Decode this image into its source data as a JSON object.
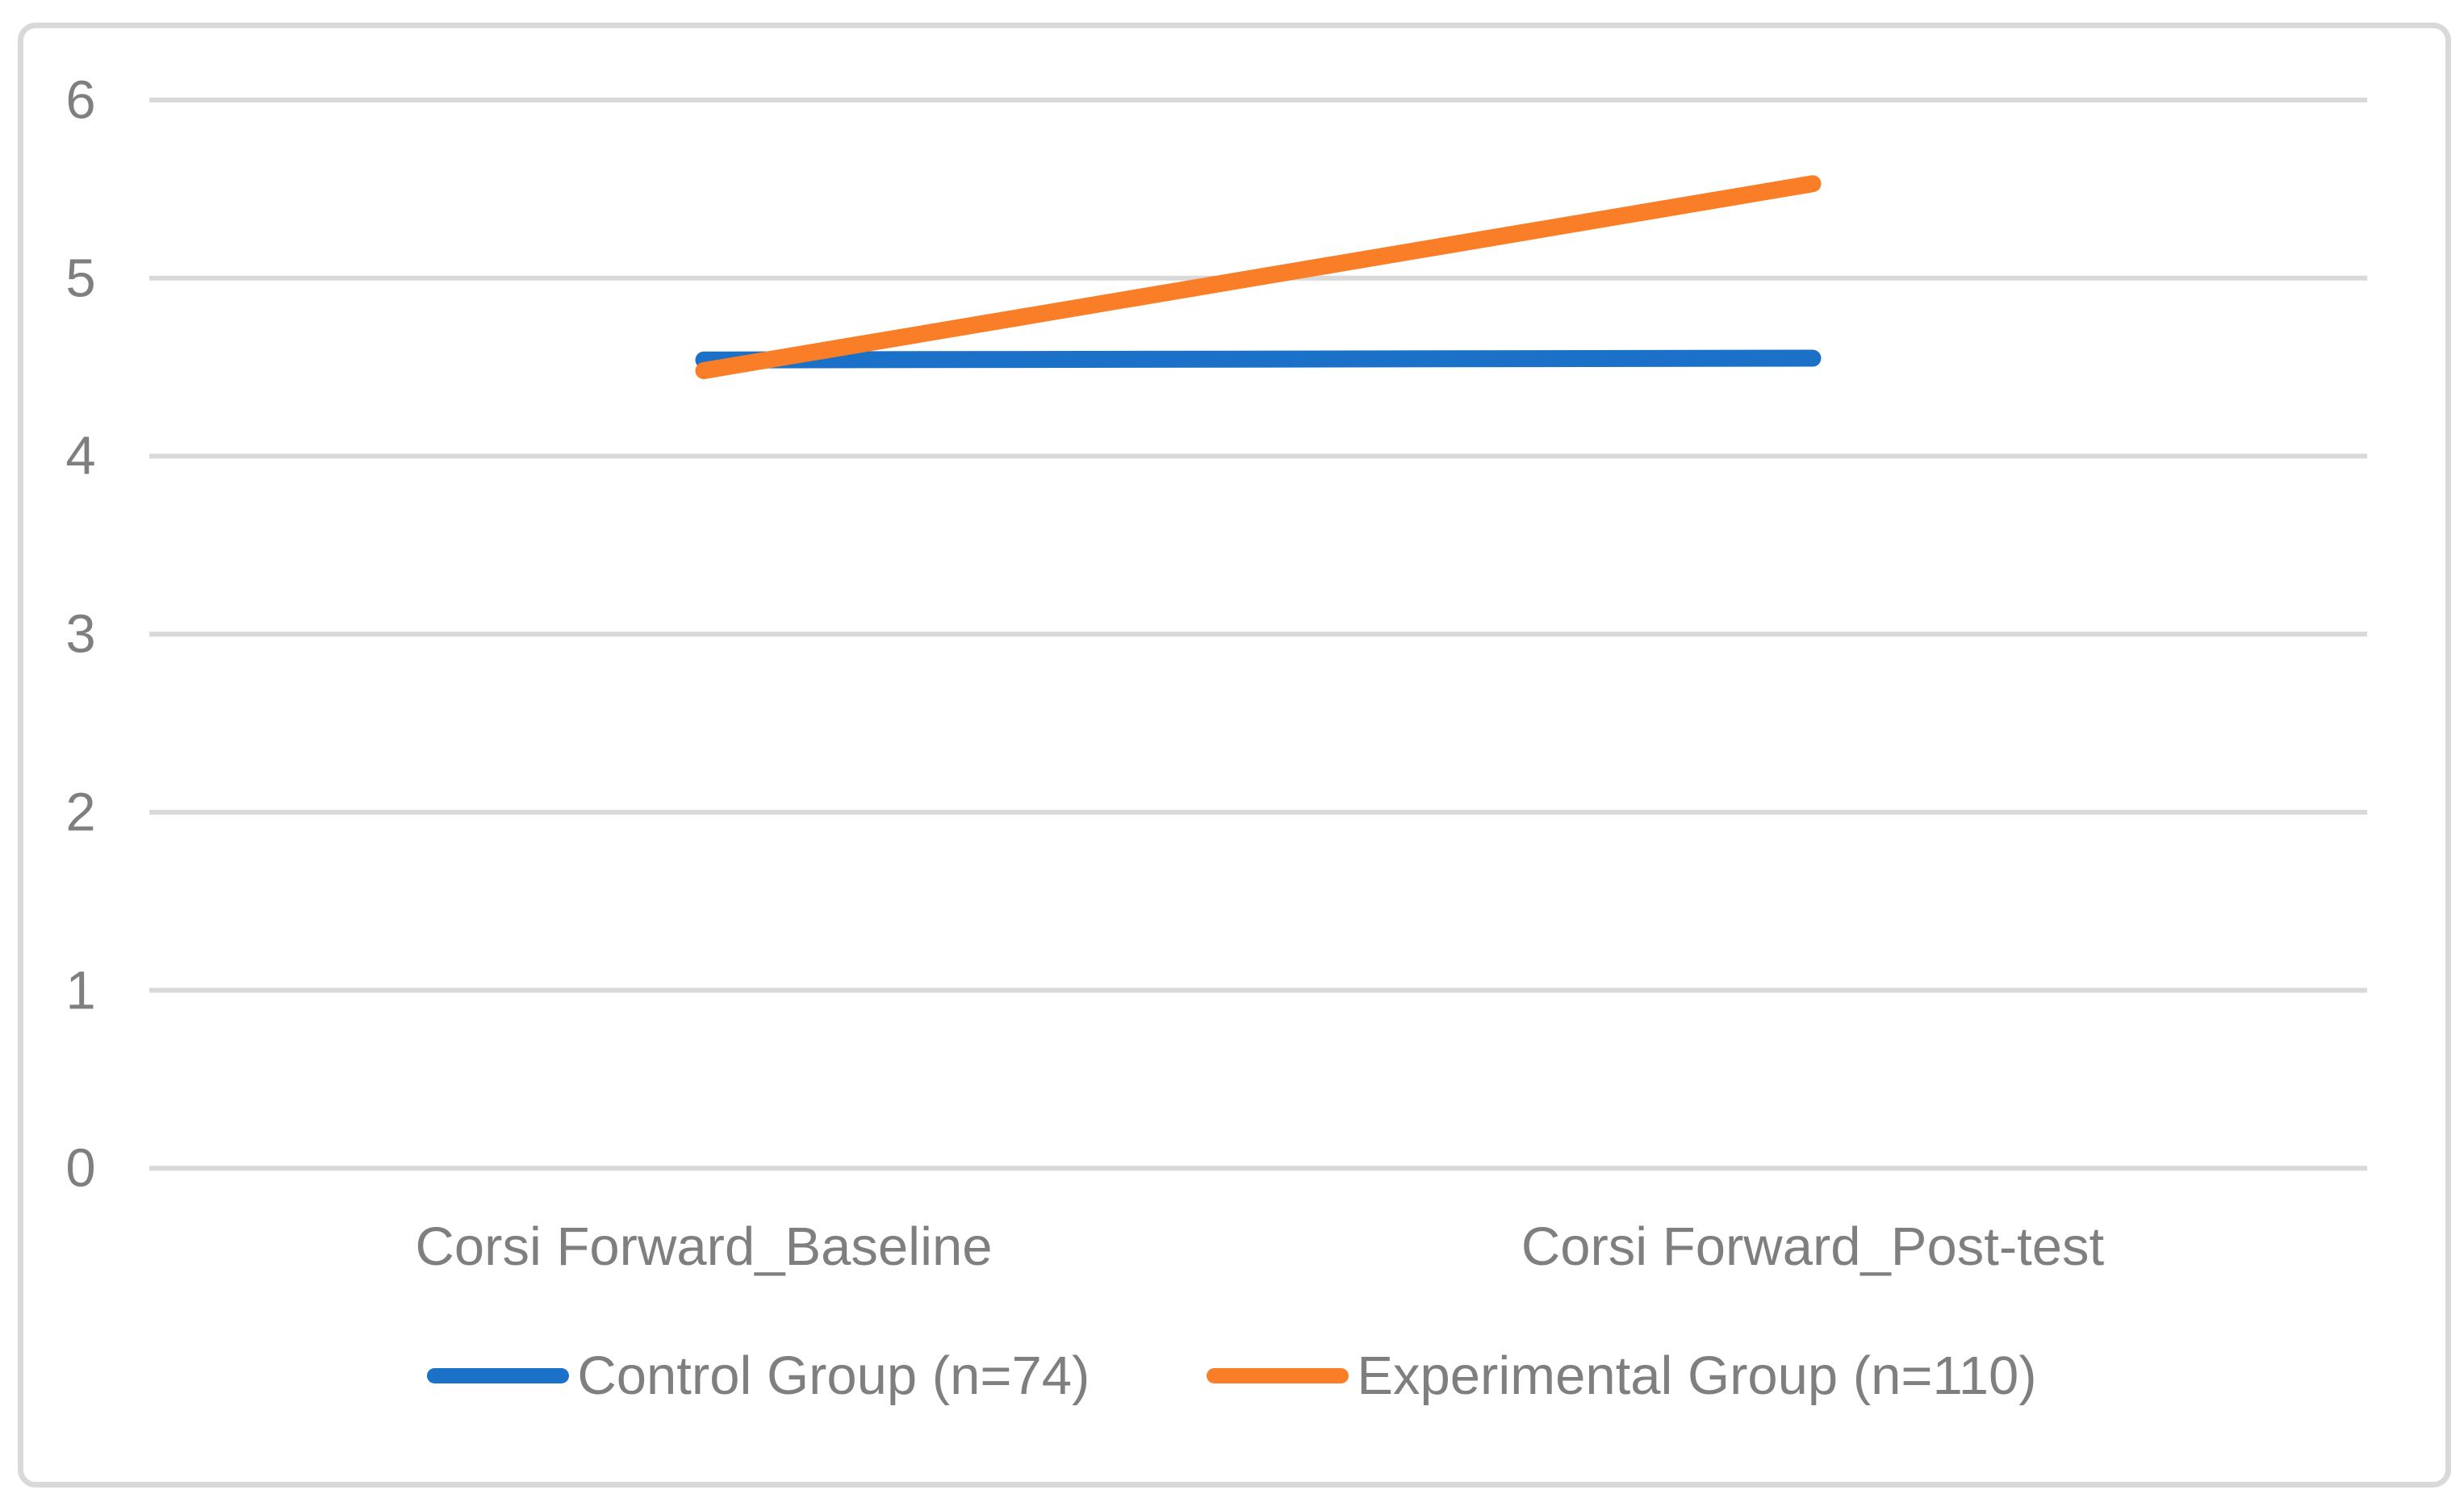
{
  "chart_data": {
    "type": "line",
    "categories": [
      "Corsi Forward_Baseline",
      "Corsi Forward_Post-test"
    ],
    "series": [
      {
        "name": "Control Group (n=74)",
        "color": "#1B70C8",
        "values": [
          4.54,
          4.55
        ]
      },
      {
        "name": "Experimental Group (n=110)",
        "color": "#F97E27",
        "values": [
          4.48,
          5.53
        ]
      }
    ],
    "title": "",
    "xlabel": "",
    "ylabel": "",
    "ylim": [
      0,
      6
    ],
    "yticks": [
      0,
      1,
      2,
      3,
      4,
      5,
      6
    ],
    "grid": "horizontal",
    "legend_position": "bottom"
  },
  "colors": {
    "grid": "#D9D9D9",
    "frame_border": "#D9D9D9",
    "axis_text": "#7F7F7F",
    "background": "#FFFFFF"
  }
}
